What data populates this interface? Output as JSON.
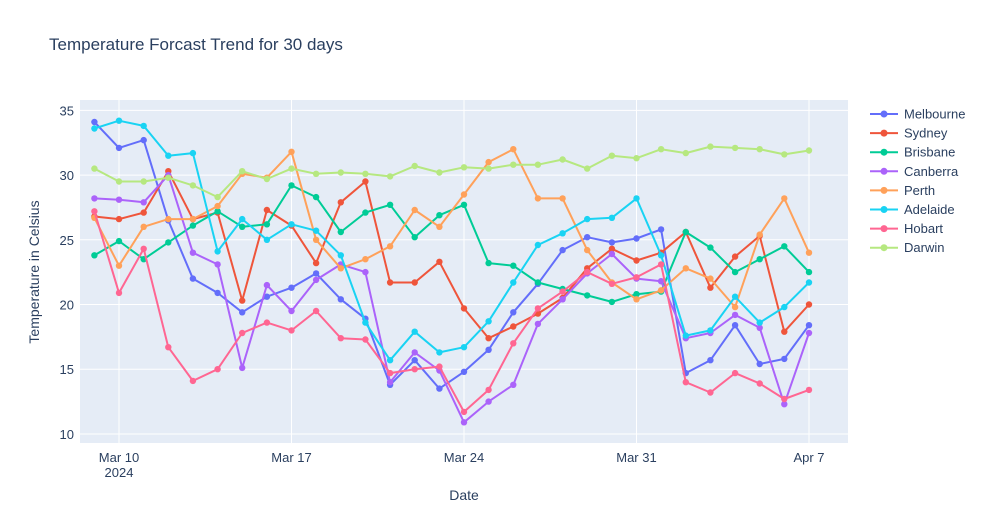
{
  "chart_data": {
    "type": "line",
    "title": "Temperature Forcast Trend for 30 days",
    "xlabel": "Date",
    "ylabel": "Temperature in Celsius",
    "x_ticks": [
      {
        "date": "2024-03-10",
        "label": "Mar 10",
        "sublabel": "2024"
      },
      {
        "date": "2024-03-17",
        "label": "Mar 17",
        "sublabel": ""
      },
      {
        "date": "2024-03-24",
        "label": "Mar 24",
        "sublabel": ""
      },
      {
        "date": "2024-03-31",
        "label": "Mar 31",
        "sublabel": ""
      },
      {
        "date": "2024-04-07",
        "label": "Apr 7",
        "sublabel": ""
      }
    ],
    "y_ticks": [
      10,
      15,
      20,
      25,
      30,
      35
    ],
    "xlim": [
      "2024-03-08T10:00",
      "2024-04-08T14:00"
    ],
    "ylim": [
      9.3,
      35.8
    ],
    "legend_position": "right",
    "x": [
      "2024-03-09",
      "2024-03-10",
      "2024-03-11",
      "2024-03-12",
      "2024-03-13",
      "2024-03-14",
      "2024-03-15",
      "2024-03-16",
      "2024-03-17",
      "2024-03-18",
      "2024-03-19",
      "2024-03-20",
      "2024-03-21",
      "2024-03-22",
      "2024-03-23",
      "2024-03-24",
      "2024-03-25",
      "2024-03-26",
      "2024-03-27",
      "2024-03-28",
      "2024-03-29",
      "2024-03-30",
      "2024-03-31",
      "2024-04-01",
      "2024-04-02",
      "2024-04-03",
      "2024-04-04",
      "2024-04-05",
      "2024-04-06",
      "2024-04-07"
    ],
    "series": [
      {
        "name": "Melbourne",
        "color": "#636efa",
        "values": [
          34.1,
          32.1,
          32.7,
          26.5,
          22.0,
          20.9,
          19.4,
          20.6,
          21.3,
          22.4,
          20.4,
          18.9,
          13.8,
          15.7,
          13.5,
          14.8,
          16.5,
          19.4,
          21.6,
          24.2,
          25.2,
          24.8,
          25.1,
          25.8,
          14.7,
          15.7,
          18.4,
          15.4,
          15.8,
          18.4
        ]
      },
      {
        "name": "Sydney",
        "color": "#EF553B",
        "values": [
          26.8,
          26.6,
          27.1,
          30.3,
          26.6,
          27.1,
          20.3,
          27.3,
          26.1,
          23.2,
          27.9,
          29.5,
          21.7,
          21.7,
          23.3,
          19.7,
          17.4,
          18.3,
          19.3,
          20.5,
          22.8,
          24.3,
          23.4,
          24.0,
          25.6,
          21.3,
          23.7,
          25.3,
          17.9,
          20.0
        ]
      },
      {
        "name": "Brisbane",
        "color": "#00cc96",
        "values": [
          23.8,
          24.9,
          23.5,
          24.8,
          26.1,
          27.2,
          26.0,
          26.2,
          29.2,
          28.3,
          25.6,
          27.1,
          27.7,
          25.2,
          26.9,
          27.7,
          23.2,
          23.0,
          21.7,
          21.2,
          20.7,
          20.2,
          20.8,
          21.0,
          25.6,
          24.4,
          22.5,
          23.5,
          24.5,
          22.5
        ]
      },
      {
        "name": "Canberra",
        "color": "#ab63fa",
        "values": [
          28.2,
          28.1,
          27.9,
          30.0,
          24.0,
          23.1,
          15.1,
          21.5,
          19.5,
          21.9,
          23.1,
          22.5,
          14.0,
          16.3,
          14.9,
          10.9,
          12.5,
          13.8,
          18.5,
          20.4,
          22.4,
          23.9,
          22.0,
          21.8,
          17.4,
          17.8,
          19.2,
          18.2,
          12.3,
          17.8
        ]
      },
      {
        "name": "Perth",
        "color": "#FFA15A",
        "values": [
          26.7,
          23.0,
          26.0,
          26.6,
          26.6,
          27.6,
          30.1,
          29.8,
          31.8,
          25.0,
          22.8,
          23.5,
          24.5,
          27.3,
          26.0,
          28.5,
          31.0,
          32.0,
          28.2,
          28.2,
          24.2,
          21.7,
          20.4,
          21.1,
          22.8,
          22.0,
          19.8,
          25.4,
          28.2,
          24.0
        ]
      },
      {
        "name": "Adelaide",
        "color": "#19d3f3",
        "values": [
          33.6,
          34.2,
          33.8,
          31.5,
          31.7,
          24.1,
          26.6,
          25.0,
          26.2,
          25.7,
          23.8,
          18.6,
          15.7,
          17.9,
          16.3,
          16.7,
          18.7,
          21.7,
          24.6,
          25.5,
          26.6,
          26.7,
          28.2,
          23.8,
          17.6,
          18.0,
          20.6,
          18.6,
          19.8,
          21.7
        ]
      },
      {
        "name": "Hobart",
        "color": "#FF6692",
        "values": [
          27.2,
          20.9,
          24.3,
          16.7,
          14.1,
          15.0,
          17.8,
          18.6,
          18.0,
          19.5,
          17.4,
          17.3,
          14.7,
          15.0,
          15.2,
          11.7,
          13.4,
          17.0,
          19.7,
          21.0,
          22.5,
          21.6,
          22.1,
          23.1,
          14.0,
          13.2,
          14.7,
          13.9,
          12.7,
          13.4
        ]
      },
      {
        "name": "Darwin",
        "color": "#B6E880",
        "values": [
          30.5,
          29.5,
          29.5,
          29.8,
          29.2,
          28.3,
          30.3,
          29.7,
          30.5,
          30.1,
          30.2,
          30.1,
          29.9,
          30.7,
          30.2,
          30.6,
          30.5,
          30.8,
          30.8,
          31.2,
          30.5,
          31.5,
          31.3,
          32.0,
          31.7,
          32.2,
          32.1,
          32.0,
          31.6,
          31.9
        ]
      }
    ]
  }
}
